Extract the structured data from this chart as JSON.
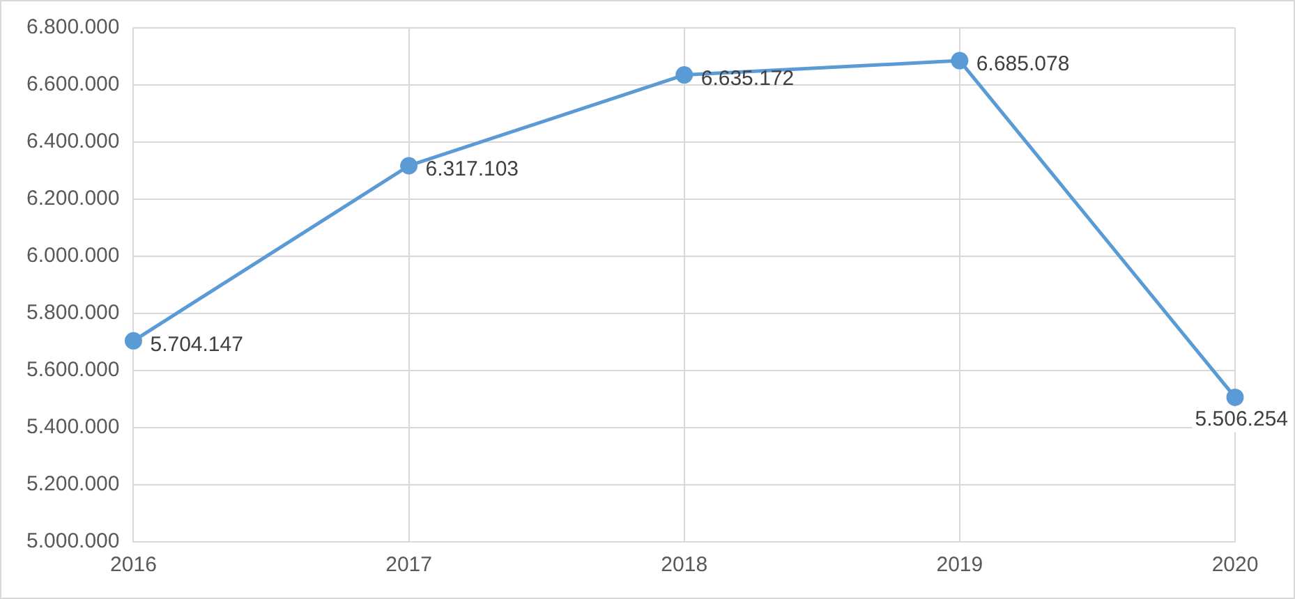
{
  "chart_data": {
    "type": "line",
    "categories": [
      "2016",
      "2017",
      "2018",
      "2019",
      "2020"
    ],
    "series": [
      {
        "color": "#5b9bd5",
        "values": [
          5704147,
          6317103,
          6635172,
          6685078,
          5506254
        ],
        "value_labels": [
          "5.704.147",
          "6.317.103",
          "6.635.172",
          "6.685.078",
          "5.506.254"
        ]
      }
    ],
    "ylim": [
      5000000,
      6800000
    ],
    "yticks": [
      {
        "value": 5000000,
        "label": "5.000.000"
      },
      {
        "value": 5200000,
        "label": "5.200.000"
      },
      {
        "value": 5400000,
        "label": "5.400.000"
      },
      {
        "value": 5600000,
        "label": "5.600.000"
      },
      {
        "value": 5800000,
        "label": "5.800.000"
      },
      {
        "value": 6000000,
        "label": "6.000.000"
      },
      {
        "value": 6200000,
        "label": "6.200.000"
      },
      {
        "value": 6400000,
        "label": "6.400.000"
      },
      {
        "value": 6600000,
        "label": "6.600.000"
      },
      {
        "value": 6800000,
        "label": "6.800.000"
      }
    ],
    "grid": true,
    "legend": false,
    "marker": "circle",
    "line_style": "solid"
  }
}
